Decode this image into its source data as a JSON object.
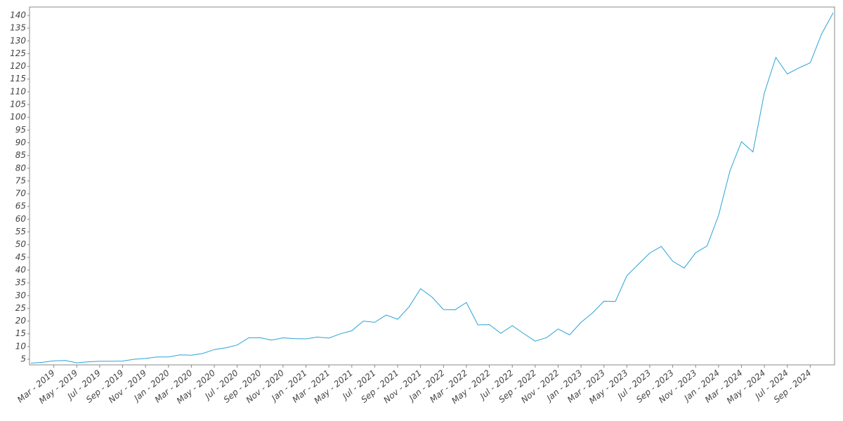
{
  "chart_data": {
    "type": "line",
    "color": "#2aa3d6",
    "x": [
      "2019-01",
      "2019-02",
      "2019-03",
      "2019-04",
      "2019-05",
      "2019-06",
      "2019-07",
      "2019-08",
      "2019-09",
      "2019-10",
      "2019-11",
      "2019-12",
      "2020-01",
      "2020-02",
      "2020-03",
      "2020-04",
      "2020-05",
      "2020-06",
      "2020-07",
      "2020-08",
      "2020-09",
      "2020-10",
      "2020-11",
      "2020-12",
      "2021-01",
      "2021-02",
      "2021-03",
      "2021-04",
      "2021-05",
      "2021-06",
      "2021-07",
      "2021-08",
      "2021-09",
      "2021-10",
      "2021-11",
      "2021-12",
      "2022-01",
      "2022-02",
      "2022-03",
      "2022-04",
      "2022-05",
      "2022-06",
      "2022-07",
      "2022-08",
      "2022-09",
      "2022-10",
      "2022-11",
      "2022-12",
      "2023-01",
      "2023-02",
      "2023-03",
      "2023-04",
      "2023-05",
      "2023-06",
      "2023-07",
      "2023-08",
      "2023-09",
      "2023-10",
      "2023-11",
      "2023-12",
      "2024-01",
      "2024-02",
      "2024-03",
      "2024-04",
      "2024-05",
      "2024-06",
      "2024-07",
      "2024-08",
      "2024-09",
      "2024-10",
      "2024-11"
    ],
    "values": [
      3.5,
      3.8,
      4.4,
      4.5,
      3.6,
      4.0,
      4.2,
      4.2,
      4.3,
      5.0,
      5.3,
      5.9,
      5.9,
      6.7,
      6.6,
      7.3,
      8.8,
      9.5,
      10.6,
      13.4,
      13.5,
      12.5,
      13.4,
      13.1,
      13.0,
      13.7,
      13.3,
      15.0,
      16.2,
      20.0,
      19.5,
      22.4,
      20.7,
      25.6,
      32.7,
      29.4,
      24.5,
      24.4,
      27.3,
      18.5,
      18.6,
      15.2,
      18.2,
      15.1,
      12.1,
      13.5,
      16.9,
      14.6,
      19.5,
      23.2,
      27.8,
      27.7,
      37.8,
      42.3,
      46.7,
      49.3,
      43.5,
      40.8,
      46.8,
      49.5,
      61.5,
      79.1,
      90.4,
      86.4,
      109.6,
      123.5,
      117.0,
      119.4,
      121.4,
      132.8,
      141.0
    ],
    "xlim": [
      "2019-01",
      "2024-11"
    ],
    "xticks": [
      {
        "value": "2019-03",
        "label": "Mar - 2019"
      },
      {
        "value": "2019-05",
        "label": "May - 2019"
      },
      {
        "value": "2019-07",
        "label": "Jul - 2019"
      },
      {
        "value": "2019-09",
        "label": "Sep - 2019"
      },
      {
        "value": "2019-11",
        "label": "Nov - 2019"
      },
      {
        "value": "2020-01",
        "label": "Jan - 2020"
      },
      {
        "value": "2020-03",
        "label": "Mar - 2020"
      },
      {
        "value": "2020-05",
        "label": "May - 2020"
      },
      {
        "value": "2020-07",
        "label": "Jul - 2020"
      },
      {
        "value": "2020-09",
        "label": "Sep - 2020"
      },
      {
        "value": "2020-11",
        "label": "Nov - 2020"
      },
      {
        "value": "2021-01",
        "label": "Jan - 2021"
      },
      {
        "value": "2021-03",
        "label": "Mar - 2021"
      },
      {
        "value": "2021-05",
        "label": "May - 2021"
      },
      {
        "value": "2021-07",
        "label": "Jul - 2021"
      },
      {
        "value": "2021-09",
        "label": "Sep - 2021"
      },
      {
        "value": "2021-11",
        "label": "Nov - 2021"
      },
      {
        "value": "2022-01",
        "label": "Jan - 2022"
      },
      {
        "value": "2022-03",
        "label": "Mar - 2022"
      },
      {
        "value": "2022-05",
        "label": "May - 2022"
      },
      {
        "value": "2022-07",
        "label": "Jul - 2022"
      },
      {
        "value": "2022-09",
        "label": "Sep - 2022"
      },
      {
        "value": "2022-11",
        "label": "Nov - 2022"
      },
      {
        "value": "2023-01",
        "label": "Jan - 2023"
      },
      {
        "value": "2023-03",
        "label": "Mar - 2023"
      },
      {
        "value": "2023-05",
        "label": "May - 2023"
      },
      {
        "value": "2023-07",
        "label": "Jul - 2023"
      },
      {
        "value": "2023-09",
        "label": "Sep - 2023"
      },
      {
        "value": "2023-11",
        "label": "Nov - 2023"
      },
      {
        "value": "2024-01",
        "label": "Jan - 2024"
      },
      {
        "value": "2024-03",
        "label": "Mar - 2024"
      },
      {
        "value": "2024-05",
        "label": "May - 2024"
      },
      {
        "value": "2024-07",
        "label": "Jul - 2024"
      },
      {
        "value": "2024-09",
        "label": "Sep - 2024"
      }
    ],
    "ylim": [
      2.8,
      143.3
    ],
    "yticks": [
      5,
      10,
      15,
      20,
      25,
      30,
      35,
      40,
      45,
      50,
      55,
      60,
      65,
      70,
      75,
      80,
      85,
      90,
      95,
      100,
      105,
      110,
      115,
      120,
      125,
      130,
      135,
      140
    ],
    "grid": false
  }
}
